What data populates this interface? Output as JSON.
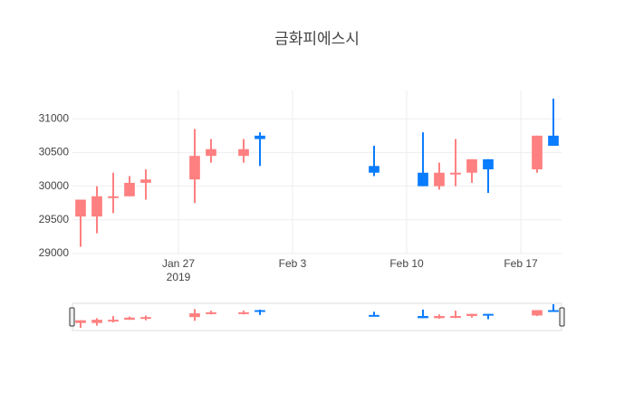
{
  "chart_data": {
    "type": "candlestick",
    "title": "금화피에스시",
    "x": [
      "2019-01-21",
      "2019-01-22",
      "2019-01-23",
      "2019-01-24",
      "2019-01-25",
      "2019-01-28",
      "2019-01-29",
      "2019-01-31",
      "2019-02-01",
      "2019-02-08",
      "2019-02-11",
      "2019-02-12",
      "2019-02-13",
      "2019-02-14",
      "2019-02-15",
      "2019-02-18",
      "2019-02-19"
    ],
    "open": [
      29550,
      29550,
      29850,
      29850,
      30050,
      30100,
      30450,
      30450,
      30750,
      30300,
      30200,
      30000,
      30180,
      30200,
      30400,
      30250,
      30750
    ],
    "high": [
      29800,
      30000,
      30200,
      30150,
      30250,
      30850,
      30700,
      30700,
      30800,
      30600,
      30800,
      30350,
      30700,
      30400,
      30400,
      30750,
      31300
    ],
    "low": [
      29100,
      29300,
      29600,
      29850,
      29800,
      29750,
      30350,
      30350,
      30300,
      30150,
      30000,
      29950,
      30000,
      30050,
      29900,
      30200,
      30600
    ],
    "close": [
      29800,
      29850,
      29850,
      30050,
      30100,
      30450,
      30550,
      30550,
      30700,
      30200,
      30000,
      30200,
      30200,
      30400,
      30250,
      30750,
      30600
    ],
    "increasing_color": "#ff8080",
    "decreasing_color": "#0a7cff",
    "xlim": [
      "2019-01-20T12:00Z",
      "2019-02-19T12:00Z"
    ],
    "xticks": [
      {
        "value": "2019-01-27",
        "label": "Jan 27\n2019"
      },
      {
        "value": "2019-02-03",
        "label": "Feb 3"
      },
      {
        "value": "2019-02-10",
        "label": "Feb 10"
      },
      {
        "value": "2019-02-17",
        "label": "Feb 17"
      }
    ],
    "ylim": [
      29000,
      31420
    ],
    "yticks": [
      29000,
      29500,
      30000,
      30500,
      31000
    ],
    "grid": true,
    "rangeslider": true
  }
}
